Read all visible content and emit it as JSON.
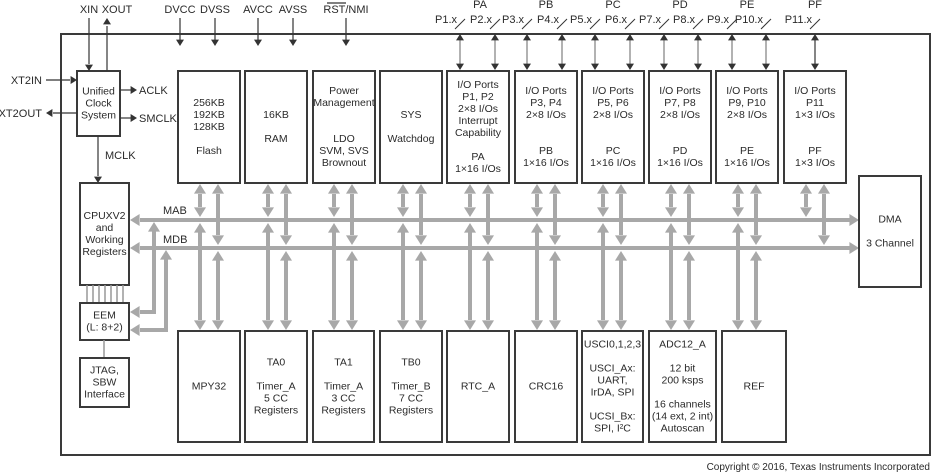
{
  "clock": {
    "inputs": [
      "XIN",
      "XOUT",
      "XT2IN",
      "XT2OUT"
    ],
    "outputs": [
      "ACLK",
      "SMCLK",
      "MCLK"
    ],
    "block": [
      "Unified",
      "Clock",
      "System"
    ]
  },
  "power_pins": [
    "DVCC",
    "DVSS",
    "AVCC",
    "AVSS",
    "RST/NMI"
  ],
  "ports": [
    {
      "name": "PA",
      "pins": [
        "P1.x",
        "P2.x"
      ]
    },
    {
      "name": "PB",
      "pins": [
        "P3.x",
        "P4.x"
      ]
    },
    {
      "name": "PC",
      "pins": [
        "P5.x",
        "P6.x"
      ]
    },
    {
      "name": "PD",
      "pins": [
        "P7.x",
        "P8.x"
      ]
    },
    {
      "name": "PE",
      "pins": [
        "P9.x",
        "P10.x"
      ]
    },
    {
      "name": "PF",
      "pins": [
        "P11.x"
      ]
    }
  ],
  "buses": {
    "mab": "MAB",
    "mdb": "MDB"
  },
  "blocks": {
    "top": [
      {
        "id": "flash",
        "lines": [
          "256KB",
          "192KB",
          "128KB",
          "",
          "Flash"
        ]
      },
      {
        "id": "ram",
        "lines": [
          "16KB",
          "",
          "RAM"
        ]
      },
      {
        "id": "power-management",
        "lines": [
          "Power",
          "Management",
          "",
          "",
          "LDO",
          "SVM, SVS",
          "Brownout"
        ]
      },
      {
        "id": "sys-watchdog",
        "lines": [
          "SYS",
          "",
          "Watchdog"
        ]
      },
      {
        "id": "io-pa",
        "lines": [
          "I/O Ports",
          "P1, P2",
          "2×8 I/Os",
          "Interrupt",
          "Capability",
          "",
          "PA",
          "1×16 I/Os"
        ]
      },
      {
        "id": "io-pb",
        "lines": [
          "I/O Ports",
          "P3, P4",
          "2×8 I/Os",
          "",
          "",
          "PB",
          "1×16 I/Os"
        ]
      },
      {
        "id": "io-pc",
        "lines": [
          "I/O Ports",
          "P5, P6",
          "2×8 I/Os",
          "",
          "",
          "PC",
          "1×16 I/Os"
        ]
      },
      {
        "id": "io-pd",
        "lines": [
          "I/O Ports",
          "P7, P8",
          "2×8 I/Os",
          "",
          "",
          "PD",
          "1×16 I/Os"
        ]
      },
      {
        "id": "io-pe",
        "lines": [
          "I/O Ports",
          "P9, P10",
          "2×8 I/Os",
          "",
          "",
          "PE",
          "1×16 I/Os"
        ]
      },
      {
        "id": "io-pf",
        "lines": [
          "I/O Ports",
          "P11",
          "1×3 I/Os",
          "",
          "",
          "PF",
          "1×3 I/Os"
        ]
      }
    ],
    "bottom": [
      {
        "id": "mpy32",
        "lines": [
          "MPY32"
        ]
      },
      {
        "id": "ta0",
        "lines": [
          "TA0",
          "",
          "Timer_A",
          "5 CC",
          "Registers"
        ]
      },
      {
        "id": "ta1",
        "lines": [
          "TA1",
          "",
          "Timer_A",
          "3 CC",
          "Registers"
        ]
      },
      {
        "id": "tb0",
        "lines": [
          "TB0",
          "",
          "Timer_B",
          "7 CC",
          "Registers"
        ]
      },
      {
        "id": "rtc-a",
        "lines": [
          "RTC_A"
        ]
      },
      {
        "id": "crc16",
        "lines": [
          "CRC16"
        ]
      },
      {
        "id": "usci",
        "lines": [
          "USCI0,1,2,3",
          "",
          "USCI_Ax:",
          "UART,",
          "IrDA, SPI",
          "",
          "UCSI_Bx:",
          "SPI, I²C"
        ]
      },
      {
        "id": "adc12-a",
        "lines": [
          "ADC12_A",
          "",
          "12 bit",
          "200 ksps",
          "",
          "16 channels",
          "(14 ext, 2 int)",
          "Autoscan"
        ]
      },
      {
        "id": "ref",
        "lines": [
          "REF"
        ]
      }
    ],
    "cpu": [
      "CPUXV2",
      "and",
      "Working",
      "Registers"
    ],
    "eem": [
      "EEM",
      "(L: 8+2)"
    ],
    "jtag": [
      "JTAG,",
      "SBW",
      "Interface"
    ],
    "dma": [
      "DMA",
      "",
      "3 Channel"
    ]
  },
  "copyright": "Copyright © 2016, Texas Instruments Incorporated"
}
